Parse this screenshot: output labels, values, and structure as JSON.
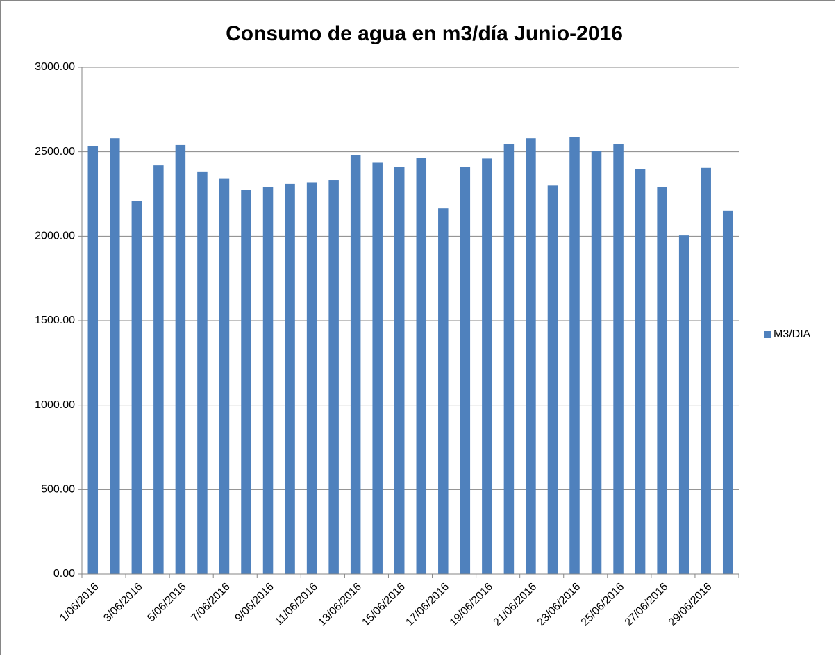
{
  "chart_data": {
    "type": "bar",
    "title": "Consumo de agua en m3/día Junio-2016",
    "categories": [
      "1/06/2016",
      null,
      "3/06/2016",
      null,
      "5/06/2016",
      null,
      "7/06/2016",
      null,
      "9/06/2016",
      null,
      "11/06/2016",
      null,
      "13/06/2016",
      null,
      "15/06/2016",
      null,
      "17/06/2016",
      null,
      "19/06/2016",
      null,
      "21/06/2016",
      null,
      "23/06/2016",
      null,
      "25/06/2016",
      null,
      "27/06/2016",
      null,
      "29/06/2016",
      null
    ],
    "series": [
      {
        "name": "M3/DIA",
        "color": "#4f81bd",
        "values": [
          2535,
          2580,
          2210,
          2420,
          2540,
          2380,
          2340,
          2275,
          2290,
          2310,
          2320,
          2330,
          2480,
          2435,
          2410,
          2465,
          2165,
          2410,
          2460,
          2545,
          2580,
          2300,
          2585,
          2505,
          2545,
          2400,
          2290,
          2005,
          2405,
          2150
        ]
      }
    ],
    "ylim": [
      0,
      3000
    ],
    "yticks": [
      {
        "value": 0,
        "label": "0.00"
      },
      {
        "value": 500,
        "label": "500.00"
      },
      {
        "value": 1000,
        "label": "1000.00"
      },
      {
        "value": 1500,
        "label": "1500.00"
      },
      {
        "value": 2000,
        "label": "2000.00"
      },
      {
        "value": 2500,
        "label": "2500.00"
      },
      {
        "value": 3000,
        "label": "3000.00"
      }
    ],
    "grid": true,
    "legend": "right"
  }
}
